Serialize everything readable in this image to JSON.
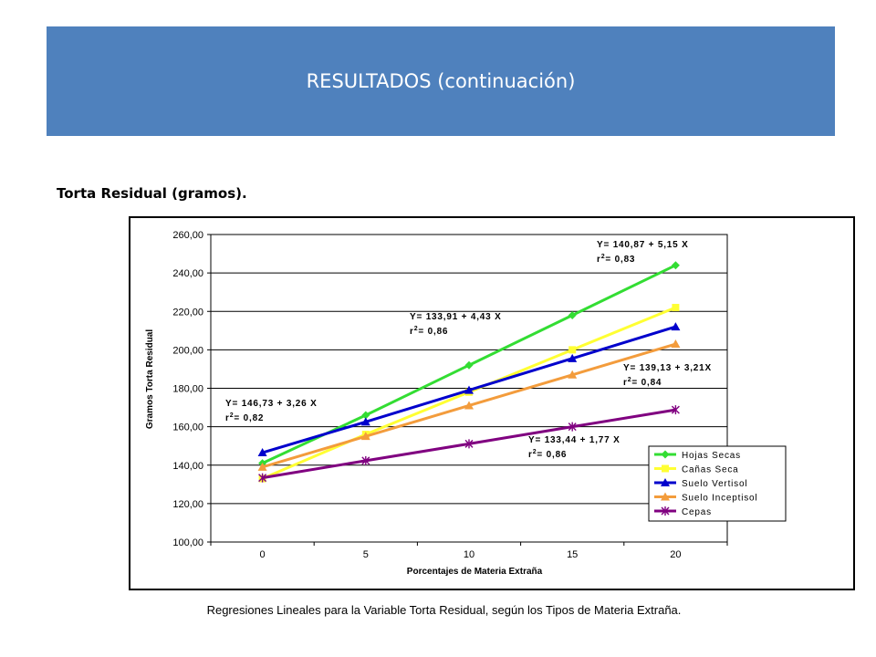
{
  "header": {
    "title": "RESULTADOS (continuación)"
  },
  "section": {
    "subtitle": "Torta Residual (gramos)."
  },
  "caption": "Regresiones Lineales para la Variable Torta  Residual, según los Tipos de Materia Extraña.",
  "chart_data": {
    "type": "line",
    "xlabel": "Porcentajes de Materia Extraña",
    "ylabel": "Gramos Torta Residual",
    "x": [
      0,
      5,
      10,
      15,
      20
    ],
    "x_tick_labels": [
      "0",
      "5",
      "10",
      "15",
      "20"
    ],
    "ylim": [
      100,
      260
    ],
    "y_tick_labels": [
      "100,00",
      "120,00",
      "140,00",
      "160,00",
      "180,00",
      "200,00",
      "220,00",
      "240,00",
      "260,00"
    ],
    "grid": "horizontal",
    "legend_position": "bottom-right",
    "series": [
      {
        "name": "Hojas Secas",
        "color": "#33dd33",
        "marker": "diamond",
        "values": [
          141,
          166,
          192,
          218,
          244
        ]
      },
      {
        "name": "Cañas Seca",
        "color": "#ffff33",
        "marker": "square",
        "values": [
          133,
          156,
          178,
          200,
          222
        ]
      },
      {
        "name": "Suelo Vertisol",
        "color": "#0000cc",
        "marker": "triangle",
        "values": [
          146.5,
          162.5,
          179,
          195.5,
          212
        ]
      },
      {
        "name": "Suelo Inceptisol",
        "color": "#f39c3c",
        "marker": "triangle",
        "values": [
          139,
          155,
          171,
          187,
          203
        ]
      },
      {
        "name": "Cepas",
        "color": "#800080",
        "marker": "star",
        "values": [
          133.4,
          142.3,
          151.1,
          160,
          168.8
        ]
      }
    ],
    "annotations": [
      {
        "series": "Hojas Secas",
        "eq": "Y= 140,87 + 5,15 X",
        "r2": "0,83"
      },
      {
        "series": "Cañas Seca",
        "eq": "Y= 133,91 + 4,43 X",
        "r2": "0,86"
      },
      {
        "series": "Suelo Inceptisol",
        "eq": "Y= 139,13 + 3,21X",
        "r2": "0,84"
      },
      {
        "series": "Suelo Vertisol",
        "eq": "Y= 146,73 + 3,26 X",
        "r2": "0,82"
      },
      {
        "series": "Cepas",
        "eq": "Y= 133,44 + 1,77 X",
        "r2": "0,86"
      }
    ]
  }
}
